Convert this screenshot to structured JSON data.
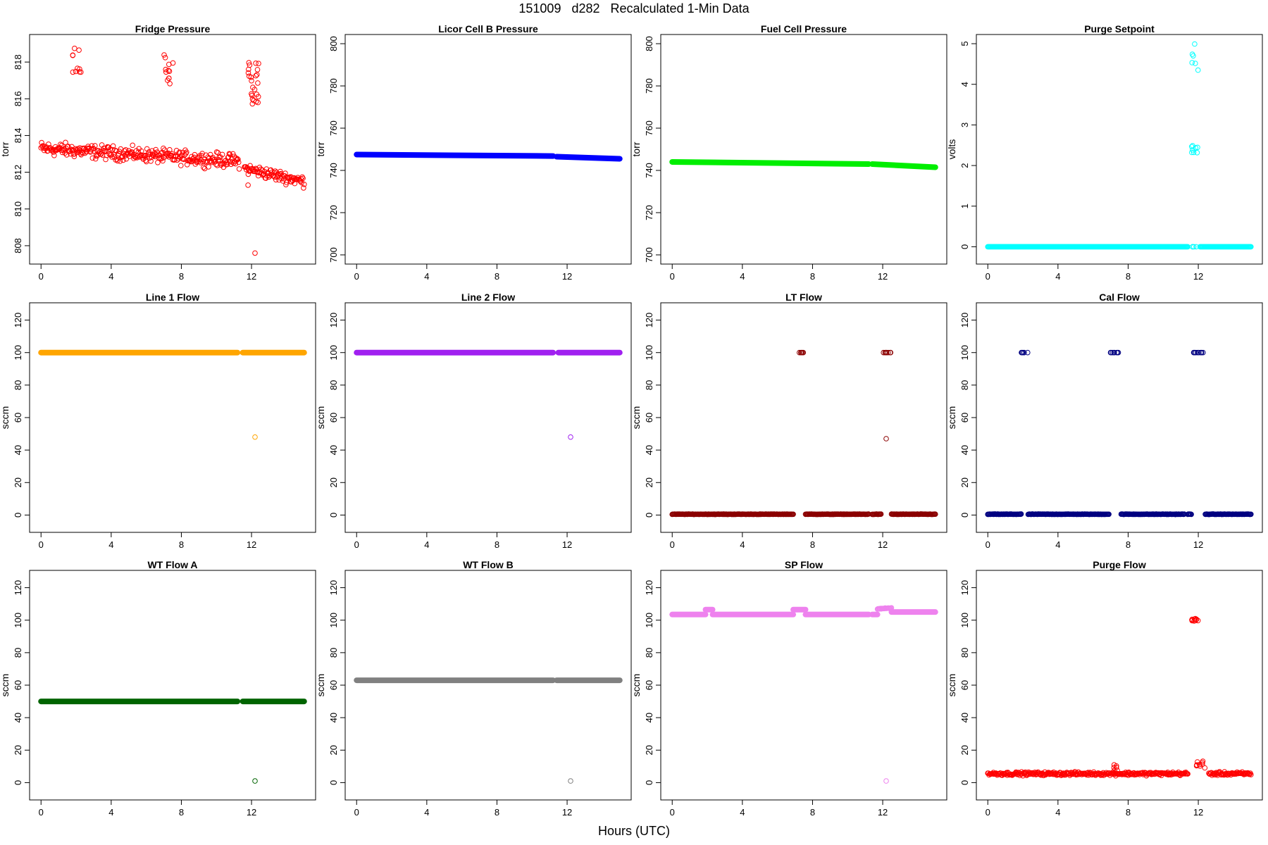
{
  "figure": {
    "title": "151009   d282   Recalculated 1-Min Data",
    "xlabel": "Hours (UTC)"
  },
  "chart_data": [
    {
      "type": "scatter",
      "title": "Fridge Pressure",
      "ylabel": "torr",
      "color": "#ff0000",
      "xlim": [
        0,
        15
      ],
      "ylim": [
        807.5,
        819
      ],
      "xticks": [
        0,
        4,
        8,
        12
      ],
      "yticks": [
        808,
        810,
        812,
        814,
        816,
        818
      ],
      "segments": [
        {
          "x0": 0,
          "x1": 11.3,
          "y0": 813.3,
          "y1": 812.6,
          "noise": 0.55
        },
        {
          "x0": 11.6,
          "x1": 15,
          "y0": 812.2,
          "y1": 811.5,
          "noise": 0.45
        }
      ],
      "clusters": [
        {
          "x0": 1.8,
          "x1": 2.3,
          "ylo": 817.4,
          "yhi": 818.9,
          "n": 10
        },
        {
          "x0": 7.0,
          "x1": 7.6,
          "ylo": 816.8,
          "yhi": 818.5,
          "n": 12
        },
        {
          "x0": 11.8,
          "x1": 12.4,
          "ylo": 815.5,
          "yhi": 818.0,
          "n": 24
        }
      ],
      "points": [
        [
          12.2,
          807.6
        ],
        [
          11.8,
          811.3
        ]
      ],
      "filled": false
    },
    {
      "type": "scatter",
      "title": "Licor Cell B Pressure",
      "ylabel": "torr",
      "color": "#0000ff",
      "xlim": [
        0,
        15
      ],
      "ylim": [
        700,
        800
      ],
      "xticks": [
        0,
        4,
        8,
        12
      ],
      "yticks": [
        700,
        720,
        740,
        760,
        780,
        800
      ],
      "segments": [
        {
          "x0": 0,
          "x1": 11.2,
          "y0": 747.5,
          "y1": 746.8,
          "noise": 0.15
        },
        {
          "x0": 11.4,
          "x1": 15,
          "y0": 746.5,
          "y1": 745.5,
          "noise": 0.15
        }
      ],
      "clusters": [],
      "points": [],
      "filled": true
    },
    {
      "type": "scatter",
      "title": "Fuel Cell Pressure",
      "ylabel": "torr",
      "color": "#00ee00",
      "xlim": [
        0,
        15
      ],
      "ylim": [
        700,
        800
      ],
      "xticks": [
        0,
        4,
        8,
        12
      ],
      "yticks": [
        700,
        720,
        740,
        760,
        780,
        800
      ],
      "segments": [
        {
          "x0": 0,
          "x1": 11.2,
          "y0": 744,
          "y1": 743,
          "noise": 0.15
        },
        {
          "x0": 11.4,
          "x1": 15,
          "y0": 743,
          "y1": 741.5,
          "noise": 0.15
        }
      ],
      "clusters": [],
      "points": [],
      "filled": true
    },
    {
      "type": "scatter",
      "title": "Purge Setpoint",
      "ylabel": "volts",
      "color": "#00ffff",
      "xlim": [
        0,
        15
      ],
      "ylim": [
        -0.2,
        5
      ],
      "xticks": [
        0,
        4,
        8,
        12
      ],
      "yticks": [
        0,
        1,
        2,
        3,
        4,
        5
      ],
      "segments": [
        {
          "x0": 0,
          "x1": 11.4,
          "y0": 0,
          "y1": 0,
          "noise": 0
        },
        {
          "x0": 12.1,
          "x1": 15,
          "y0": 0,
          "y1": 0,
          "noise": 0
        }
      ],
      "clusters": [
        {
          "x0": 11.6,
          "x1": 12.0,
          "ylo": 4.2,
          "yhi": 5.0,
          "n": 6
        },
        {
          "x0": 11.6,
          "x1": 12.0,
          "ylo": 2.3,
          "yhi": 2.5,
          "n": 8
        },
        {
          "x0": 11.6,
          "x1": 12.0,
          "ylo": 0,
          "yhi": 0,
          "n": 4
        }
      ],
      "points": [],
      "filled": false
    },
    {
      "type": "scatter",
      "title": "Line 1 Flow",
      "ylabel": "sccm",
      "color": "#ffa500",
      "xlim": [
        0,
        15
      ],
      "ylim": [
        -5,
        125
      ],
      "xticks": [
        0,
        4,
        8,
        12
      ],
      "yticks": [
        0,
        20,
        40,
        60,
        80,
        100,
        120
      ],
      "segments": [
        {
          "x0": 0,
          "x1": 11.2,
          "y0": 100,
          "y1": 100,
          "noise": 0
        },
        {
          "x0": 11.5,
          "x1": 15,
          "y0": 100,
          "y1": 100,
          "noise": 0
        }
      ],
      "clusters": [],
      "points": [
        [
          12.2,
          48
        ]
      ],
      "filled": true
    },
    {
      "type": "scatter",
      "title": "Line 2 Flow",
      "ylabel": "sccm",
      "color": "#a020f0",
      "xlim": [
        0,
        15
      ],
      "ylim": [
        -5,
        125
      ],
      "xticks": [
        0,
        4,
        8,
        12
      ],
      "yticks": [
        0,
        20,
        40,
        60,
        80,
        100,
        120
      ],
      "segments": [
        {
          "x0": 0,
          "x1": 11.2,
          "y0": 100,
          "y1": 100,
          "noise": 0
        },
        {
          "x0": 11.5,
          "x1": 15,
          "y0": 100,
          "y1": 100,
          "noise": 0
        }
      ],
      "clusters": [],
      "points": [
        [
          12.2,
          48
        ]
      ],
      "filled": true
    },
    {
      "type": "scatter",
      "title": "LT Flow",
      "ylabel": "sccm",
      "color": "#8b0000",
      "xlim": [
        0,
        15
      ],
      "ylim": [
        -5,
        125
      ],
      "xticks": [
        0,
        4,
        8,
        12
      ],
      "yticks": [
        0,
        20,
        40,
        60,
        80,
        100,
        120
      ],
      "segments": [
        {
          "x0": 0,
          "x1": 6.9,
          "y0": 0.5,
          "y1": 0.5,
          "noise": 0.2
        },
        {
          "x0": 7.6,
          "x1": 11.2,
          "y0": 0.5,
          "y1": 0.5,
          "noise": 0.2
        },
        {
          "x0": 11.4,
          "x1": 11.9,
          "y0": 0.5,
          "y1": 0.5,
          "noise": 0.2
        },
        {
          "x0": 12.5,
          "x1": 15,
          "y0": 0.5,
          "y1": 0.5,
          "noise": 0.2
        }
      ],
      "clusters": [
        {
          "x0": 7.2,
          "x1": 7.5,
          "ylo": 100,
          "yhi": 100,
          "n": 6
        },
        {
          "x0": 12.0,
          "x1": 12.5,
          "ylo": 100,
          "yhi": 100,
          "n": 8
        }
      ],
      "points": [
        [
          12.2,
          47
        ]
      ],
      "filled": false
    },
    {
      "type": "scatter",
      "title": "Cal Flow",
      "ylabel": "sccm",
      "color": "#000080",
      "xlim": [
        0,
        15
      ],
      "ylim": [
        -5,
        125
      ],
      "xticks": [
        0,
        4,
        8,
        12
      ],
      "yticks": [
        0,
        20,
        40,
        60,
        80,
        100,
        120
      ],
      "segments": [
        {
          "x0": 0,
          "x1": 1.9,
          "y0": 0.5,
          "y1": 0.5,
          "noise": 0.2
        },
        {
          "x0": 2.3,
          "x1": 6.9,
          "y0": 0.5,
          "y1": 0.5,
          "noise": 0.2
        },
        {
          "x0": 7.6,
          "x1": 11.2,
          "y0": 0.5,
          "y1": 0.5,
          "noise": 0.2
        },
        {
          "x0": 11.4,
          "x1": 11.6,
          "y0": 0.5,
          "y1": 0.5,
          "noise": 0.2
        },
        {
          "x0": 12.4,
          "x1": 15,
          "y0": 0.5,
          "y1": 0.5,
          "noise": 0.2
        }
      ],
      "clusters": [
        {
          "x0": 1.9,
          "x1": 2.3,
          "ylo": 100,
          "yhi": 100,
          "n": 6
        },
        {
          "x0": 6.9,
          "x1": 7.5,
          "ylo": 100,
          "yhi": 100,
          "n": 8
        },
        {
          "x0": 11.7,
          "x1": 12.3,
          "ylo": 100,
          "yhi": 100,
          "n": 10
        }
      ],
      "points": [],
      "filled": false
    },
    {
      "type": "scatter",
      "title": "WT Flow A",
      "ylabel": "sccm",
      "color": "#006400",
      "xlim": [
        0,
        15
      ],
      "ylim": [
        -5,
        125
      ],
      "xticks": [
        0,
        4,
        8,
        12
      ],
      "yticks": [
        0,
        20,
        40,
        60,
        80,
        100,
        120
      ],
      "segments": [
        {
          "x0": 0,
          "x1": 11.2,
          "y0": 50,
          "y1": 50,
          "noise": 0
        },
        {
          "x0": 11.5,
          "x1": 15,
          "y0": 50,
          "y1": 50,
          "noise": 0
        }
      ],
      "clusters": [],
      "points": [
        [
          12.2,
          1
        ]
      ],
      "filled": true
    },
    {
      "type": "scatter",
      "title": "WT Flow B",
      "ylabel": "sccm",
      "color": "#808080",
      "xlim": [
        0,
        15
      ],
      "ylim": [
        -5,
        125
      ],
      "xticks": [
        0,
        4,
        8,
        12
      ],
      "yticks": [
        0,
        20,
        40,
        60,
        80,
        100,
        120
      ],
      "segments": [
        {
          "x0": 0,
          "x1": 11.2,
          "y0": 63,
          "y1": 63,
          "noise": 0
        },
        {
          "x0": 11.4,
          "x1": 15,
          "y0": 63,
          "y1": 63,
          "noise": 0
        }
      ],
      "clusters": [],
      "points": [
        [
          12.2,
          1
        ]
      ],
      "filled": true
    },
    {
      "type": "scatter",
      "title": "SP Flow",
      "ylabel": "sccm",
      "color": "#ee82ee",
      "xlim": [
        0,
        15
      ],
      "ylim": [
        -5,
        125
      ],
      "xticks": [
        0,
        4,
        8,
        12
      ],
      "yticks": [
        0,
        20,
        40,
        60,
        80,
        100,
        120
      ],
      "segments": [
        {
          "x0": 0,
          "x1": 1.9,
          "y0": 103.5,
          "y1": 103.5,
          "noise": 0
        },
        {
          "x0": 1.9,
          "x1": 2.3,
          "y0": 106.5,
          "y1": 106.5,
          "noise": 0
        },
        {
          "x0": 2.3,
          "x1": 6.9,
          "y0": 103.5,
          "y1": 103.5,
          "noise": 0
        },
        {
          "x0": 6.9,
          "x1": 7.6,
          "y0": 106.5,
          "y1": 106.5,
          "noise": 0
        },
        {
          "x0": 7.6,
          "x1": 11.2,
          "y0": 103.5,
          "y1": 103.5,
          "noise": 0
        },
        {
          "x0": 11.4,
          "x1": 11.7,
          "y0": 103.5,
          "y1": 103.5,
          "noise": 0
        },
        {
          "x0": 11.7,
          "x1": 12.5,
          "y0": 107,
          "y1": 107.5,
          "noise": 0.3
        },
        {
          "x0": 12.5,
          "x1": 15,
          "y0": 105,
          "y1": 105,
          "noise": 0
        }
      ],
      "clusters": [],
      "points": [
        [
          12.2,
          1
        ]
      ],
      "filled": true
    },
    {
      "type": "scatter",
      "title": "Purge Flow",
      "ylabel": "sccm",
      "color": "#ff0000",
      "xlim": [
        0,
        15
      ],
      "ylim": [
        -5,
        125
      ],
      "xticks": [
        0,
        4,
        8,
        12
      ],
      "yticks": [
        0,
        20,
        40,
        60,
        80,
        100,
        120
      ],
      "segments": [
        {
          "x0": 0,
          "x1": 11.4,
          "y0": 5.5,
          "y1": 5.5,
          "noise": 1.5
        },
        {
          "x0": 12.6,
          "x1": 15,
          "y0": 5.5,
          "y1": 5.5,
          "noise": 1.5
        }
      ],
      "clusters": [
        {
          "x0": 11.6,
          "x1": 12.0,
          "ylo": 99,
          "yhi": 101,
          "n": 10
        },
        {
          "x0": 11.9,
          "x1": 12.4,
          "ylo": 9,
          "yhi": 14,
          "n": 10
        },
        {
          "x0": 7.1,
          "x1": 7.5,
          "ylo": 7,
          "yhi": 11,
          "n": 6
        }
      ],
      "points": [],
      "filled": false
    }
  ]
}
